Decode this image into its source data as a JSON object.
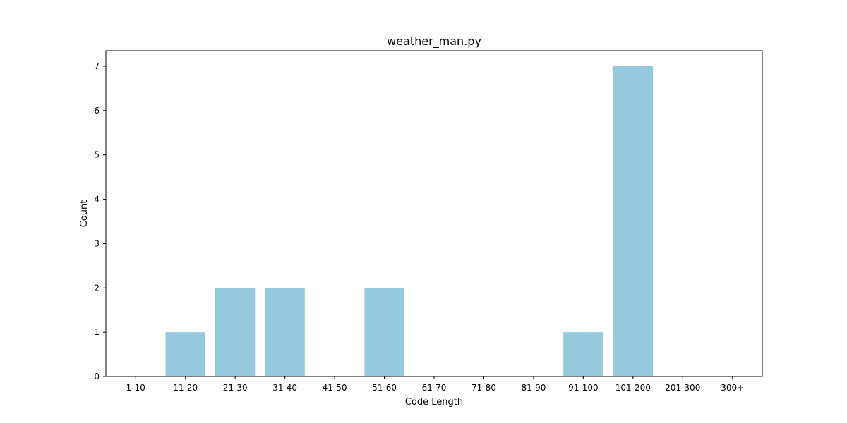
{
  "chart_data": {
    "type": "bar",
    "title": "weather_man.py",
    "xlabel": "Code Length",
    "ylabel": "Count",
    "categories": [
      "1-10",
      "11-20",
      "21-30",
      "31-40",
      "41-50",
      "51-60",
      "61-70",
      "71-80",
      "81-90",
      "91-100",
      "101-200",
      "201-300",
      "300+"
    ],
    "values": [
      0,
      1,
      2,
      2,
      0,
      2,
      0,
      0,
      0,
      1,
      7,
      0,
      0
    ],
    "ylim": [
      0,
      7.35
    ],
    "yticks": [
      0,
      1,
      2,
      3,
      4,
      5,
      6,
      7
    ],
    "grid": false,
    "legend": "none",
    "bar_color": "#96c9dd"
  }
}
